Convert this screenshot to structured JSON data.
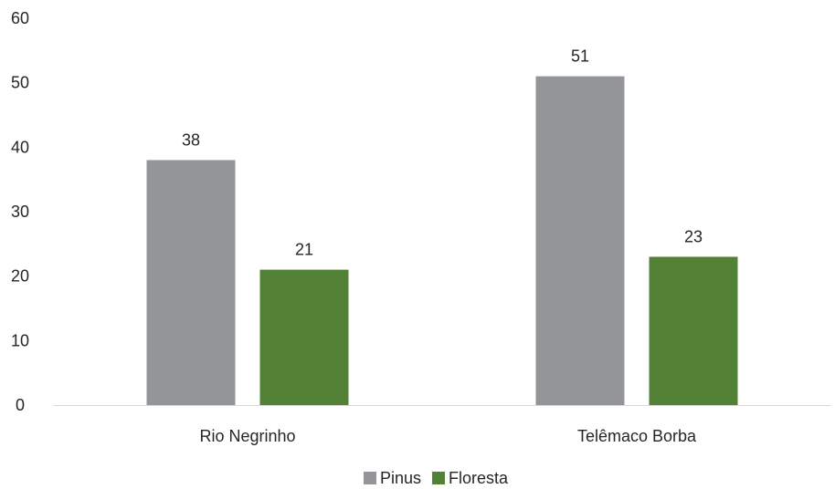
{
  "chart_data": {
    "type": "bar",
    "title": "",
    "xlabel": "",
    "ylabel": "",
    "categories": [
      "Rio Negrinho",
      "Telêmaco Borba"
    ],
    "series": [
      {
        "name": "Pinus",
        "values": [
          38,
          51
        ],
        "color": "#939598"
      },
      {
        "name": "Floresta",
        "values": [
          21,
          23
        ],
        "color": "#538135"
      }
    ],
    "ylim": [
      0,
      60
    ],
    "yticks": [
      0,
      10,
      20,
      30,
      40,
      50,
      60
    ],
    "grid": false,
    "legend_position": "bottom"
  }
}
